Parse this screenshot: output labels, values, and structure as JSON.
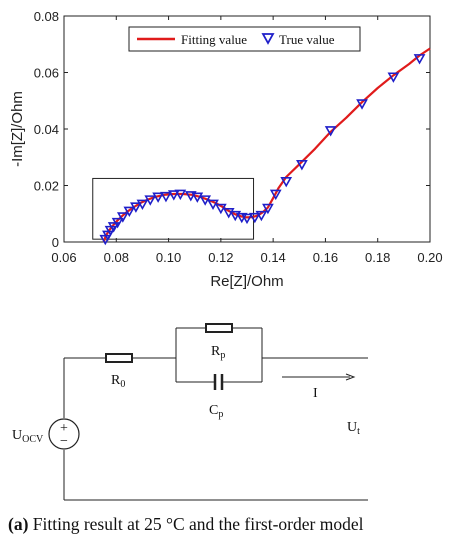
{
  "chart_data": {
    "type": "scatter",
    "xlabel": "Re[Z]/Ohm",
    "ylabel": "-Im[Z]/Ohm",
    "xlim": [
      0.06,
      0.2
    ],
    "ylim": [
      0,
      0.08
    ],
    "x_ticks": [
      "0.06",
      "0.08",
      "0.10",
      "0.12",
      "0.14",
      "0.16",
      "0.18",
      "0.20"
    ],
    "y_ticks": [
      "0",
      "0.02",
      "0.04",
      "0.06",
      "0.08"
    ],
    "legend_position": "top",
    "series": [
      {
        "name": "Fitting value",
        "kind": "line",
        "color": "#e01b1b",
        "x": [
          0.0752,
          0.076,
          0.0772,
          0.0785,
          0.08,
          0.082,
          0.084,
          0.0865,
          0.089,
          0.092,
          0.095,
          0.0985,
          0.102,
          0.1055,
          0.109,
          0.112,
          0.115,
          0.118,
          0.1205,
          0.123,
          0.1255,
          0.128,
          0.13,
          0.132,
          0.134,
          0.136,
          0.138,
          0.14,
          0.142,
          0.145,
          0.15,
          0.156,
          0.162,
          0.168,
          0.174,
          0.18,
          0.186,
          0.192,
          0.196,
          0.2
        ],
        "y": [
          0.0,
          0.0022,
          0.004,
          0.0056,
          0.0072,
          0.009,
          0.0106,
          0.0122,
          0.0137,
          0.015,
          0.016,
          0.0167,
          0.017,
          0.017,
          0.0167,
          0.016,
          0.015,
          0.0138,
          0.0125,
          0.011,
          0.0098,
          0.009,
          0.0087,
          0.0088,
          0.0093,
          0.0105,
          0.0122,
          0.0155,
          0.019,
          0.023,
          0.0275,
          0.033,
          0.039,
          0.044,
          0.0495,
          0.0545,
          0.059,
          0.063,
          0.066,
          0.0685
        ]
      },
      {
        "name": "True value",
        "kind": "scatter",
        "marker": "down-triangle",
        "color": "#1f1fc9",
        "x": [
          0.0758,
          0.0768,
          0.0778,
          0.079,
          0.0805,
          0.0825,
          0.085,
          0.0875,
          0.09,
          0.093,
          0.096,
          0.099,
          0.102,
          0.1045,
          0.1085,
          0.111,
          0.114,
          0.117,
          0.12,
          0.123,
          0.1255,
          0.128,
          0.13,
          0.133,
          0.1355,
          0.138,
          0.141,
          0.145,
          0.151,
          0.162,
          0.174,
          0.186,
          0.196
        ],
        "y": [
          0.001,
          0.0025,
          0.0042,
          0.0055,
          0.007,
          0.009,
          0.011,
          0.0125,
          0.0135,
          0.015,
          0.016,
          0.0162,
          0.0168,
          0.017,
          0.0165,
          0.016,
          0.015,
          0.0135,
          0.012,
          0.0105,
          0.0095,
          0.0088,
          0.0085,
          0.0088,
          0.0095,
          0.012,
          0.017,
          0.0215,
          0.0275,
          0.0395,
          0.049,
          0.0585,
          0.065
        ]
      }
    ],
    "annotations": [
      {
        "kind": "rectangle",
        "x": [
          0.071,
          0.1325
        ],
        "y": [
          0.001,
          0.0225
        ]
      }
    ]
  },
  "circuit": {
    "source_label": "U",
    "source_sub": "OCV",
    "r0_label": "R",
    "r0_sub": "0",
    "rp_label": "R",
    "rp_sub": "p",
    "cp_label": "C",
    "cp_sub": "p",
    "current_label": "I",
    "ut_label": "U",
    "ut_sub": "t",
    "plus_sign": "+",
    "minus_sign": "−"
  },
  "caption": {
    "tag": "(a)",
    "text": " Fitting result at 25 °C and the first-order model"
  }
}
